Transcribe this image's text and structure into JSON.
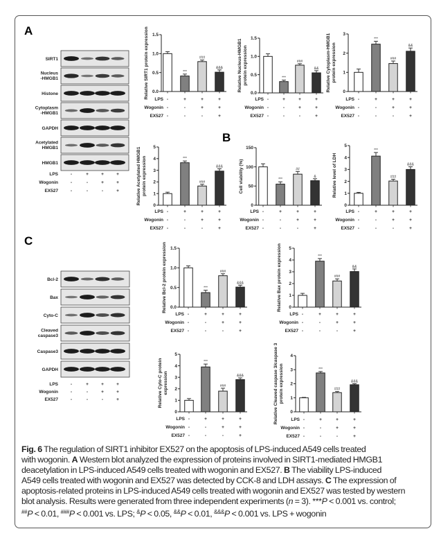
{
  "panel_letters": {
    "a": "A",
    "b": "B",
    "c": "C"
  },
  "colors": {
    "control": "#ffffff",
    "lps": "#808080",
    "lps_wogonin": "#d4d4d4",
    "lps_wogonin_ex527": "#333333"
  },
  "treatments": [
    {
      "label": "LPS",
      "signs": [
        "-",
        "+",
        "+",
        "+"
      ]
    },
    {
      "label": "Wogonin",
      "signs": [
        "-",
        "-",
        "+",
        "+"
      ]
    },
    {
      "label": "EX527",
      "signs": [
        "-",
        "-",
        "-",
        "+"
      ]
    }
  ],
  "blots": {
    "panel_a": {
      "rows": [
        [
          "SIRT1"
        ],
        [
          "Nucleus",
          "-HMGB1"
        ],
        [
          "Histone"
        ],
        [
          "Cytoplasm",
          "-HMGB1"
        ],
        [
          "GAPDH"
        ],
        [
          "Acetylated",
          "HMGB1"
        ],
        [
          "HMGB1"
        ]
      ]
    },
    "panel_c": {
      "rows": [
        [
          "Bcl-2"
        ],
        [
          "Bax"
        ],
        [
          "Cyto-C"
        ],
        [
          "Cleaved",
          "caspase3"
        ],
        [
          "Caspase3"
        ],
        [
          "GAPDH"
        ]
      ]
    }
  },
  "chart_data": [
    {
      "id": "sirt1",
      "type": "bar",
      "ylabel": [
        "Relative SIRT1 protein expression"
      ],
      "ylim": [
        0,
        1.5
      ],
      "ticks": [
        "0.0",
        "0.5",
        "1.0",
        "1.5"
      ],
      "values": [
        1.0,
        0.41,
        0.79,
        0.51
      ],
      "errors": [
        0.05,
        0.05,
        0.04,
        0.06
      ],
      "significance": [
        "",
        "***",
        "###",
        "&&&"
      ]
    },
    {
      "id": "nucleus-hmgb1",
      "type": "bar",
      "ylabel": [
        "Relative Nucleus-HMGB1",
        "protein expression"
      ],
      "ylim": [
        0,
        1.5
      ],
      "ticks": [
        "0.0",
        "0.5",
        "1.0",
        "1.5"
      ],
      "values": [
        1.0,
        0.31,
        0.76,
        0.55
      ],
      "errors": [
        0.07,
        0.04,
        0.04,
        0.06
      ],
      "significance": [
        "",
        "***",
        "###",
        "&&"
      ]
    },
    {
      "id": "cytoplasm-hmgb1",
      "type": "bar",
      "ylabel": [
        "Relative Cytoplasm-HMGB1",
        "protein expression"
      ],
      "ylim": [
        0,
        3
      ],
      "ticks": [
        "0",
        "1",
        "2",
        "3"
      ],
      "values": [
        1.0,
        2.47,
        1.46,
        2.1
      ],
      "errors": [
        0.17,
        0.15,
        0.13,
        0.17
      ],
      "significance": [
        "",
        "***",
        "###",
        "&&"
      ]
    },
    {
      "id": "acetylated-hmgb1",
      "type": "bar",
      "ylabel": [
        "Relative Acetylated HMGB1",
        "protein expression"
      ],
      "ylim": [
        0,
        5
      ],
      "ticks": [
        "0",
        "1",
        "2",
        "3",
        "4",
        "5"
      ],
      "values": [
        1.0,
        3.65,
        1.65,
        2.93
      ],
      "errors": [
        0.12,
        0.15,
        0.15,
        0.2
      ],
      "significance": [
        "",
        "***",
        "###",
        "&&&"
      ]
    },
    {
      "id": "cell-viability",
      "type": "bar",
      "ylabel": [
        "Cell viability (%)"
      ],
      "ylim": [
        0,
        150
      ],
      "ticks": [
        "0",
        "50",
        "100",
        "150"
      ],
      "values": [
        100,
        55,
        81,
        64
      ],
      "errors": [
        8,
        6,
        7,
        5
      ],
      "significance": [
        "",
        "***",
        "##",
        "&"
      ]
    },
    {
      "id": "ldh",
      "type": "bar",
      "ylabel": [
        "Relative level of LDH"
      ],
      "ylim": [
        0,
        5
      ],
      "ticks": [
        "0",
        "1",
        "2",
        "3",
        "4",
        "5"
      ],
      "values": [
        1.0,
        4.12,
        2.03,
        3.0
      ],
      "errors": [
        0.08,
        0.3,
        0.15,
        0.22
      ],
      "significance": [
        "",
        "***",
        "###",
        "&&&"
      ]
    },
    {
      "id": "bcl2",
      "type": "bar",
      "ylabel": [
        "Relative Bcl-2 protein expression"
      ],
      "ylim": [
        0,
        1.5
      ],
      "ticks": [
        "0.0",
        "0.5",
        "1.0",
        "1.5"
      ],
      "values": [
        1.0,
        0.37,
        0.8,
        0.51
      ],
      "errors": [
        0.05,
        0.06,
        0.05,
        0.05
      ],
      "significance": [
        "",
        "***",
        "###",
        "&&&"
      ]
    },
    {
      "id": "bax",
      "type": "bar",
      "ylabel": [
        "Relative Bax protein expression"
      ],
      "ylim": [
        0,
        5
      ],
      "ticks": [
        "0",
        "1",
        "2",
        "3",
        "4",
        "5"
      ],
      "values": [
        1.0,
        3.9,
        2.22,
        3.02
      ],
      "errors": [
        0.17,
        0.22,
        0.18,
        0.22
      ],
      "significance": [
        "",
        "***",
        "###",
        "&&"
      ]
    },
    {
      "id": "cyto-c",
      "type": "bar",
      "ylabel": [
        "Relative Cyto-C protein",
        "expression"
      ],
      "ylim": [
        0,
        5
      ],
      "ticks": [
        "0",
        "1",
        "2",
        "3",
        "4",
        "5"
      ],
      "values": [
        1.0,
        3.9,
        1.8,
        2.8
      ],
      "errors": [
        0.15,
        0.25,
        0.25,
        0.15
      ],
      "significance": [
        "",
        "***",
        "###",
        "&&&"
      ]
    },
    {
      "id": "cleaved-caspase3",
      "type": "bar",
      "ylabel": [
        "Relative Cleaved caspase 3/caspase 3",
        "protein expression"
      ],
      "ylim": [
        0,
        4
      ],
      "ticks": [
        "0",
        "1",
        "2",
        "3",
        "4"
      ],
      "values": [
        1.0,
        2.77,
        1.37,
        1.93
      ],
      "errors": [
        0.03,
        0.1,
        0.08,
        0.07
      ],
      "significance": [
        "",
        "***",
        "###",
        "&&&"
      ]
    }
  ],
  "caption": {
    "lines": [
      [
        {
          "text": "Fig. 6",
          "bold": true
        },
        {
          "text": "  The regulation of SIRT1 inhibitor EX527 on the apoptosis of LPS-induced A549 cells treated"
        }
      ],
      [
        {
          "text": "with wogonin. "
        },
        {
          "text": "A",
          "bold": true
        },
        {
          "text": " Western blot analyzed the expression of proteins involved in SIRT1-mediated HMGB1"
        }
      ],
      [
        {
          "text": "deacetylation in LPS-induced A549 cells treated with wogonin and EX527. "
        },
        {
          "text": "B",
          "bold": true
        },
        {
          "text": " The viability LPS-induced"
        }
      ],
      [
        {
          "text": "A549 cells treated with wogonin and EX527 was detected by CCK-8 and LDH assays. "
        },
        {
          "text": "C",
          "bold": true
        },
        {
          "text": " The expression of"
        }
      ],
      [
        {
          "text": "apoptosis-related proteins in LPS-induced A549 cells treated with wogonin and EX527 was tested by western"
        }
      ],
      [
        {
          "text": "blot analysis. Results were generated from three independent experiments ("
        },
        {
          "text": "n",
          "italic": true
        },
        {
          "text": " = 3). ***"
        },
        {
          "text": "P",
          "italic": true
        },
        {
          "text": " < 0.001 vs. control;"
        }
      ],
      [
        {
          "text": "##",
          "sup": true
        },
        {
          "text": "P",
          "italic": true
        },
        {
          "text": " < 0.01, "
        },
        {
          "text": "###",
          "sup": true
        },
        {
          "text": "P",
          "italic": true
        },
        {
          "text": " < 0.001 vs. LPS; "
        },
        {
          "text": "&",
          "sup": true
        },
        {
          "text": "P",
          "italic": true
        },
        {
          "text": " < 0.05, "
        },
        {
          "text": "&&",
          "sup": true
        },
        {
          "text": "P",
          "italic": true
        },
        {
          "text": " < 0.01, "
        },
        {
          "text": "&&&",
          "sup": true
        },
        {
          "text": "P",
          "italic": true
        },
        {
          "text": " < 0.001 vs. LPS + wogonin"
        }
      ]
    ]
  }
}
